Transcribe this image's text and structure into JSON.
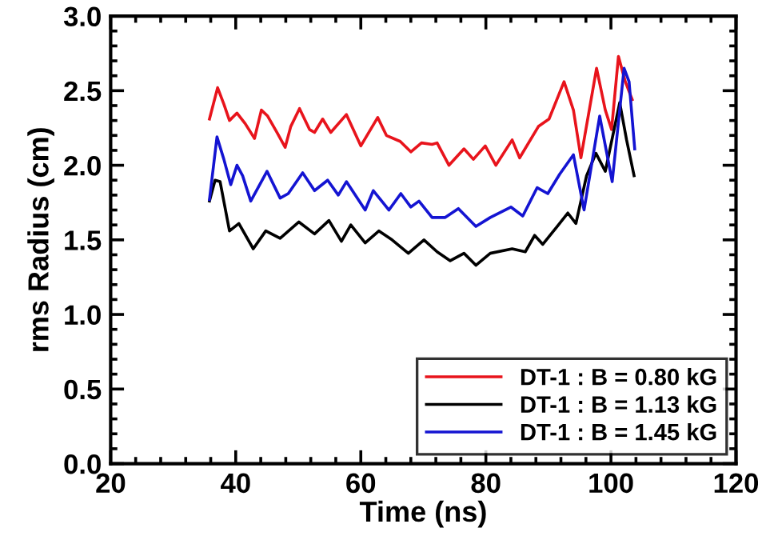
{
  "chart_data": {
    "type": "line",
    "xlabel": "Time (ns)",
    "ylabel": "rms Radius (cm)",
    "xlim": [
      20,
      120
    ],
    "xticks": [
      20,
      40,
      60,
      80,
      100,
      120
    ],
    "ylim": [
      0,
      3
    ],
    "yticks": [
      {
        "value": 0,
        "label": "0.0"
      },
      {
        "value": 0.5,
        "label": "0.5"
      },
      {
        "value": 1,
        "label": "1.0"
      },
      {
        "value": 1.5,
        "label": "1.5"
      },
      {
        "value": 2,
        "label": "2.0"
      },
      {
        "value": 2.5,
        "label": "2.5"
      },
      {
        "value": 3,
        "label": "3.0"
      }
    ],
    "grid": false,
    "legend": "bottom right",
    "marker": "none",
    "line_style": "solid",
    "series": [
      {
        "name": "DT-1 : B = 0.80 kG",
        "color": "#e8141c",
        "x": [
          35.8,
          37.1,
          38.1,
          39.0,
          40.2,
          41.5,
          43.0,
          44.1,
          45.1,
          46.6,
          47.9,
          48.8,
          50.2,
          51.8,
          52.6,
          53.9,
          55.2,
          57.7,
          60.0,
          62.7,
          64.1,
          66.3,
          68.0,
          69.7,
          71.4,
          72.2,
          74.1,
          76.5,
          78.0,
          79.9,
          81.6,
          84.2,
          85.4,
          88.4,
          90.1,
          92.5,
          94.0,
          95.2,
          97.7,
          99.1,
          100.1,
          101.2,
          102.3,
          103.4
        ],
        "values": [
          2.31,
          2.52,
          2.41,
          2.3,
          2.35,
          2.28,
          2.18,
          2.37,
          2.33,
          2.22,
          2.12,
          2.26,
          2.38,
          2.24,
          2.22,
          2.31,
          2.22,
          2.34,
          2.13,
          2.32,
          2.2,
          2.16,
          2.09,
          2.15,
          2.14,
          2.15,
          2.0,
          2.11,
          2.04,
          2.13,
          2.0,
          2.17,
          2.05,
          2.26,
          2.31,
          2.56,
          2.37,
          2.05,
          2.65,
          2.37,
          2.24,
          2.73,
          2.56,
          2.44
        ]
      },
      {
        "name": "DT-1 : B = 1.13 kG",
        "color": "#000000",
        "x": [
          35.8,
          36.7,
          37.5,
          39.0,
          40.5,
          42.8,
          44.8,
          47.1,
          50.1,
          52.6,
          54.9,
          56.9,
          58.4,
          60.7,
          62.9,
          65.0,
          67.6,
          70.1,
          72.2,
          74.3,
          76.5,
          78.4,
          80.7,
          84.2,
          86.3,
          87.8,
          89.1,
          91.4,
          93.1,
          94.4,
          96.1,
          97.6,
          99.1,
          101.4,
          102.5,
          103.7
        ],
        "values": [
          1.76,
          1.9,
          1.89,
          1.56,
          1.61,
          1.44,
          1.56,
          1.51,
          1.62,
          1.54,
          1.63,
          1.49,
          1.6,
          1.48,
          1.56,
          1.5,
          1.41,
          1.5,
          1.42,
          1.36,
          1.41,
          1.33,
          1.41,
          1.44,
          1.42,
          1.53,
          1.47,
          1.59,
          1.68,
          1.61,
          1.93,
          2.08,
          1.96,
          2.42,
          2.17,
          1.93
        ]
      },
      {
        "name": "DT-1 : B = 1.45 kG",
        "color": "#1414d2",
        "x": [
          35.8,
          37.0,
          38.1,
          39.2,
          40.2,
          41.1,
          42.4,
          45.0,
          47.1,
          48.4,
          50.7,
          52.6,
          54.7,
          56.4,
          57.7,
          60.7,
          62.0,
          64.5,
          66.4,
          68.0,
          69.3,
          71.4,
          73.5,
          75.6,
          78.4,
          80.7,
          84.0,
          85.9,
          88.2,
          89.9,
          91.8,
          94.0,
          95.7,
          98.2,
          100.2,
          102.1,
          102.9,
          103.8
        ],
        "values": [
          1.77,
          2.19,
          2.04,
          1.87,
          2.0,
          1.93,
          1.76,
          1.96,
          1.78,
          1.81,
          1.95,
          1.83,
          1.9,
          1.8,
          1.89,
          1.7,
          1.83,
          1.7,
          1.81,
          1.72,
          1.76,
          1.65,
          1.65,
          1.71,
          1.59,
          1.65,
          1.72,
          1.66,
          1.85,
          1.81,
          1.94,
          2.07,
          1.7,
          2.33,
          1.89,
          2.65,
          2.56,
          2.11
        ]
      }
    ]
  }
}
